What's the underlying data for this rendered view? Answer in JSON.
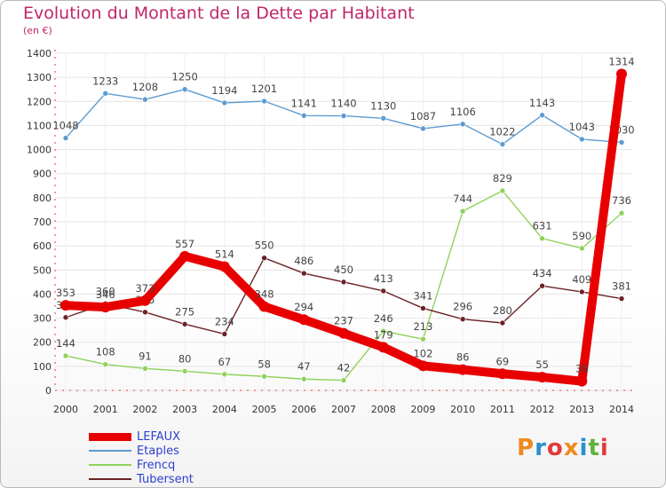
{
  "title": "Evolution du Montant de la Dette par Habitant",
  "subtitle": "(en €)",
  "logo": {
    "text": "Proxiti",
    "colors": [
      "#f08a1c",
      "#2a8fd0",
      "#e23a3a",
      "#f08a1c",
      "#2a8fd0",
      "#5fb13a",
      "#e23a3a"
    ]
  },
  "chart_data": {
    "type": "line",
    "title": "Evolution du Montant de la Dette par Habitant",
    "subtitle": "(en €)",
    "x": [
      "2000",
      "2001",
      "2002",
      "2003",
      "2004",
      "2005",
      "2006",
      "2007",
      "2008",
      "2009",
      "2010",
      "2011",
      "2012",
      "2013",
      "2014"
    ],
    "ylim": [
      0,
      1400
    ],
    "yticks": [
      0,
      100,
      200,
      300,
      400,
      500,
      600,
      700,
      800,
      900,
      1000,
      1100,
      1200,
      1300,
      1400
    ],
    "grid": true,
    "legend_placement": "bottom-left",
    "series": [
      {
        "name": "LEFAUX",
        "color": "#e80000",
        "values": [
          353,
          346,
          373,
          557,
          514,
          348,
          294,
          237,
          179,
          102,
          86,
          69,
          55,
          38,
          1314
        ]
      },
      {
        "name": "Etaples",
        "color": "#5c9bd1",
        "values": [
          1048,
          1233,
          1208,
          1250,
          1194,
          1201,
          1141,
          1140,
          1130,
          1087,
          1106,
          1022,
          1143,
          1043,
          1030
        ]
      },
      {
        "name": "Frencq",
        "color": "#8fd25b",
        "values": [
          144,
          108,
          91,
          80,
          67,
          58,
          47,
          42,
          246,
          213,
          744,
          829,
          631,
          590,
          736
        ]
      },
      {
        "name": "Tubersent",
        "color": "#6b2226",
        "values": [
          303,
          360,
          325,
          275,
          234,
          550,
          486,
          450,
          413,
          341,
          296,
          280,
          434,
          409,
          381
        ]
      }
    ]
  }
}
